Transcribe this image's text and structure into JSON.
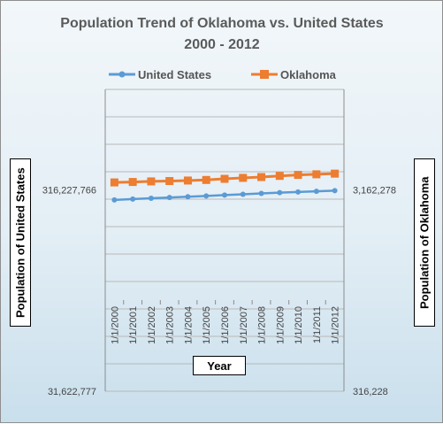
{
  "chart_data": {
    "type": "line",
    "title_lines": [
      "Population Trend of  Oklahoma vs. United States",
      "2000 - 2012"
    ],
    "xlabel": "Year",
    "ylabel_left": "Population of United States",
    "ylabel_right": "Population of Oklahoma",
    "categories": [
      "1/1/2000",
      "1/1/2001",
      "1/1/2002",
      "1/1/2003",
      "1/1/2004",
      "1/1/2005",
      "1/1/2006",
      "1/1/2007",
      "1/1/2008",
      "1/1/2009",
      "1/1/2010",
      "1/1/2011",
      "1/1/2012"
    ],
    "y_left_scale": "log",
    "y_right_scale": "log",
    "y_left_ticks": [
      "316,227,766",
      "31,622,777"
    ],
    "y_left_tick_values": [
      316227766,
      31622777
    ],
    "y_right_ticks": [
      "3,162,278",
      "316,228"
    ],
    "y_right_tick_values": [
      3162278,
      316228
    ],
    "y_left_range": [
      31622777,
      1000000000
    ],
    "y_right_range": [
      316228,
      10000000
    ],
    "grid": true,
    "legend_position": "top",
    "series": [
      {
        "name": "United States",
        "axis": "left",
        "color": "#5b9bd5",
        "values": [
          282200000,
          285000000,
          287600000,
          290100000,
          292800000,
          295500000,
          298400000,
          301200000,
          304100000,
          306800000,
          309300000,
          311600000,
          313900000
        ]
      },
      {
        "name": "Oklahoma",
        "axis": "right",
        "color": "#ed7d31",
        "values": [
          3450000,
          3467000,
          3490000,
          3505000,
          3525000,
          3548000,
          3594000,
          3634000,
          3668000,
          3717000,
          3760000,
          3785000,
          3814000
        ]
      }
    ]
  }
}
